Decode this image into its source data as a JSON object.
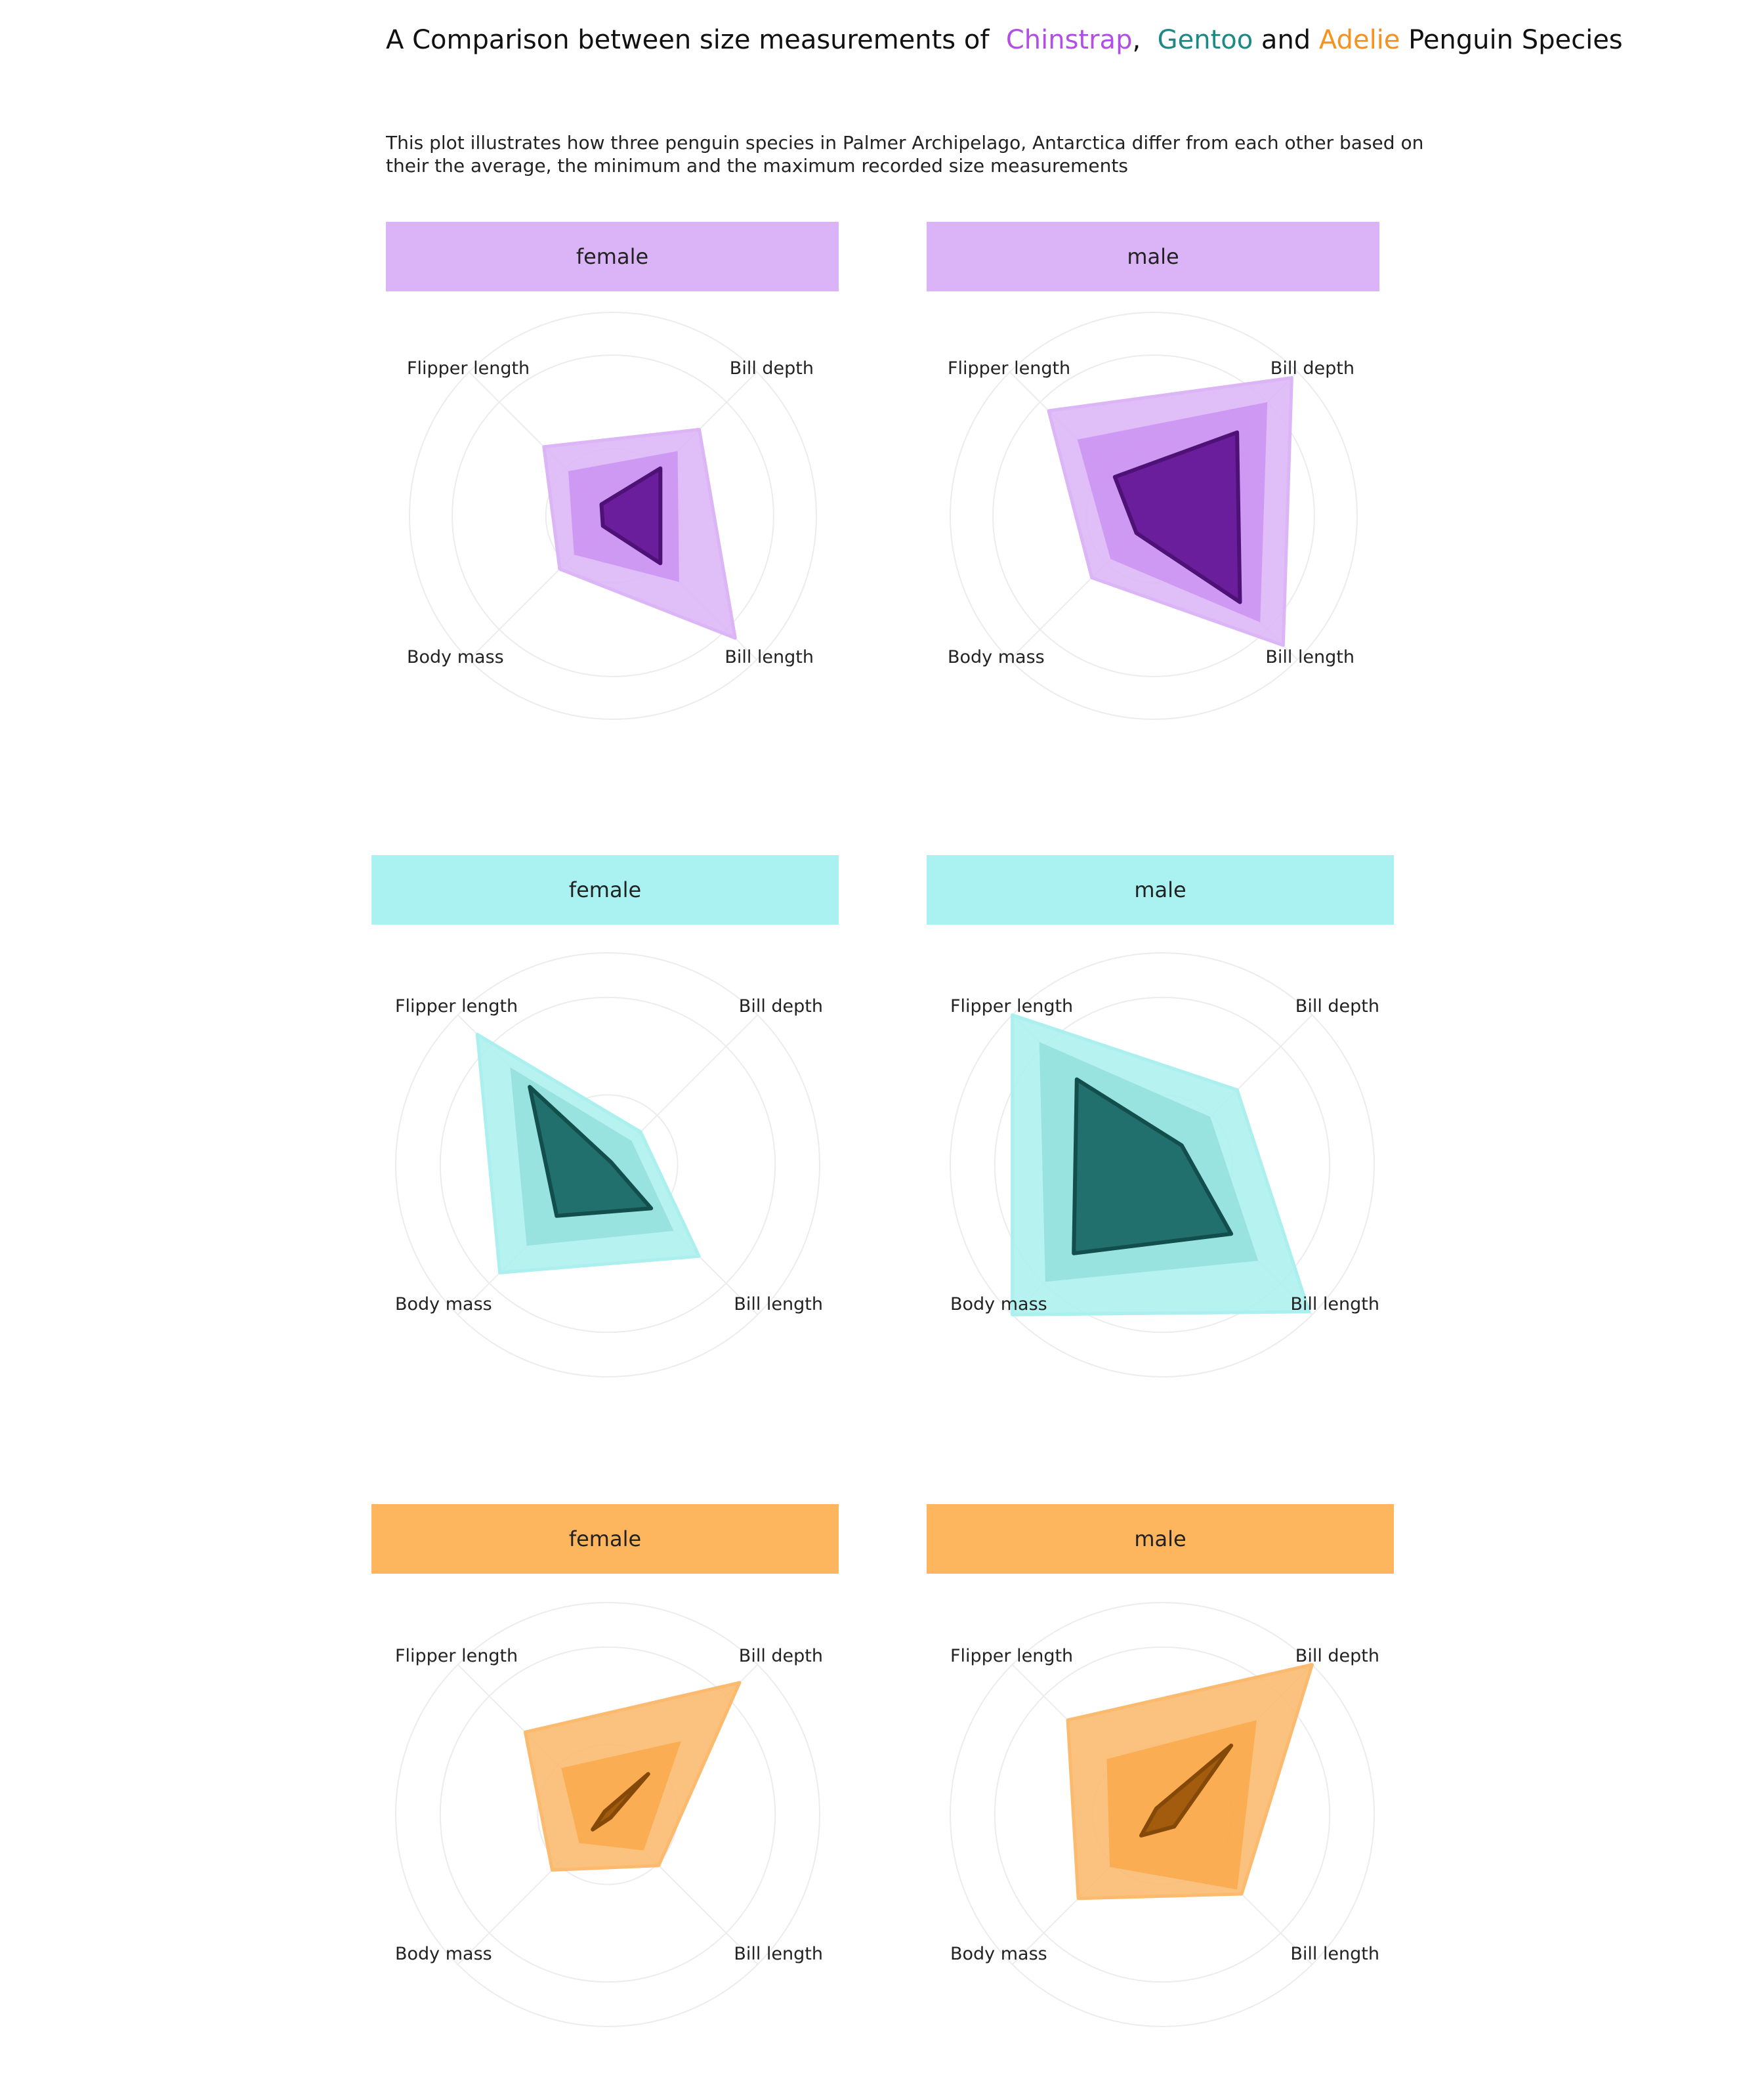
{
  "title_parts": [
    {
      "text": "A Comparison between size measurements of  ",
      "color": "#111111"
    },
    {
      "text": "Chinstrap",
      "color": "#b24ee6"
    },
    {
      "text": ",  ",
      "color": "#111111"
    },
    {
      "text": "Gentoo",
      "color": "#1b8a85"
    },
    {
      "text": " and ",
      "color": "#111111"
    },
    {
      "text": "Adelie",
      "color": "#f7921e"
    },
    {
      "text": " Penguin Species",
      "color": "#111111"
    }
  ],
  "subtitle": "This plot illustrates how three penguin species in Palmer Archipelago, Antarctica differ from each other based on their the average, the minimum and the maximum recorded size measurements",
  "chart_data": {
    "type": "radar",
    "axes": [
      "Bill depth",
      "Bill length",
      "Body mass",
      "Flipper length"
    ],
    "rlim": [
      0,
      1
    ],
    "grid": true,
    "stats": [
      "maximum",
      "average",
      "minimum"
    ],
    "panels": [
      {
        "species": "Chinstrap",
        "sex": "female",
        "strip_color": "#dbb4f8",
        "colors": {
          "max": "#dcb5f7",
          "mean": "#c88cf1",
          "min": "#6b1e9c",
          "min_stroke": "#4e1276"
        },
        "max": {
          "Bill depth": 0.6,
          "Bill length": 0.85,
          "Body mass": 0.37,
          "Flipper length": 0.48
        },
        "mean": {
          "Bill depth": 0.45,
          "Bill length": 0.46,
          "Body mass": 0.27,
          "Flipper length": 0.31
        },
        "min": {
          "Bill depth": 0.33,
          "Bill length": 0.33,
          "Body mass": 0.07,
          "Flipper length": 0.08
        }
      },
      {
        "species": "Chinstrap",
        "sex": "male",
        "strip_color": "#dbb4f8",
        "colors": {
          "max": "#dcb5f7",
          "mean": "#c88cf1",
          "min": "#6b1e9c",
          "min_stroke": "#4e1276"
        },
        "max": {
          "Bill depth": 0.96,
          "Bill length": 0.9,
          "Body mass": 0.43,
          "Flipper length": 0.73
        },
        "mean": {
          "Bill depth": 0.79,
          "Bill length": 0.74,
          "Body mass": 0.3,
          "Flipper length": 0.53
        },
        "min": {
          "Bill depth": 0.58,
          "Bill length": 0.6,
          "Body mass": 0.12,
          "Flipper length": 0.27
        }
      },
      {
        "species": "Gentoo",
        "sex": "female",
        "strip_color": "#a9f2f1",
        "colors": {
          "max": "#abf0ee",
          "mean": "#8fdcda",
          "min": "#21706d",
          "min_stroke": "#124e4b"
        },
        "max": {
          "Bill depth": 0.22,
          "Bill length": 0.61,
          "Body mass": 0.72,
          "Flipper length": 0.87
        },
        "mean": {
          "Bill depth": 0.16,
          "Bill length": 0.44,
          "Body mass": 0.54,
          "Flipper length": 0.65
        },
        "min": {
          "Bill depth": 0.02,
          "Bill length": 0.29,
          "Body mass": 0.34,
          "Flipper length": 0.52
        }
      },
      {
        "species": "Gentoo",
        "sex": "male",
        "strip_color": "#a9f2f1",
        "colors": {
          "max": "#abf0ee",
          "mean": "#8fdcda",
          "min": "#21706d",
          "min_stroke": "#124e4b"
        },
        "max": {
          "Bill depth": 0.5,
          "Bill length": 0.98,
          "Body mass": 1.0,
          "Flipper length": 1.0
        },
        "mean": {
          "Bill depth": 0.32,
          "Bill length": 0.64,
          "Body mass": 0.78,
          "Flipper length": 0.82
        },
        "min": {
          "Bill depth": 0.13,
          "Bill length": 0.46,
          "Body mass": 0.59,
          "Flipper length": 0.57
        }
      },
      {
        "species": "Adelie",
        "sex": "female",
        "strip_color": "#fdb55e",
        "colors": {
          "max": "#fbba6d",
          "mean": "#f9a544",
          "min": "#a35c0d",
          "min_stroke": "#844808"
        },
        "max": {
          "Bill depth": 0.88,
          "Bill length": 0.34,
          "Body mass": 0.37,
          "Flipper length": 0.55
        },
        "mean": {
          "Bill depth": 0.49,
          "Bill length": 0.24,
          "Body mass": 0.19,
          "Flipper length": 0.31
        },
        "min": {
          "Bill depth": 0.27,
          "Bill length": 0.02,
          "Body mass": 0.1,
          "Flipper length": 0.02
        }
      },
      {
        "species": "Adelie",
        "sex": "male",
        "strip_color": "#fdb55e",
        "colors": {
          "max": "#fbba6d",
          "mean": "#f9a544",
          "min": "#a35c0d",
          "min_stroke": "#844808"
        },
        "max": {
          "Bill depth": 1.0,
          "Bill length": 0.53,
          "Body mass": 0.56,
          "Flipper length": 0.63
        },
        "mean": {
          "Bill depth": 0.63,
          "Bill length": 0.5,
          "Body mass": 0.35,
          "Flipper length": 0.37
        },
        "min": {
          "Bill depth": 0.46,
          "Bill length": 0.08,
          "Body mass": 0.14,
          "Flipper length": 0.04
        }
      }
    ]
  }
}
